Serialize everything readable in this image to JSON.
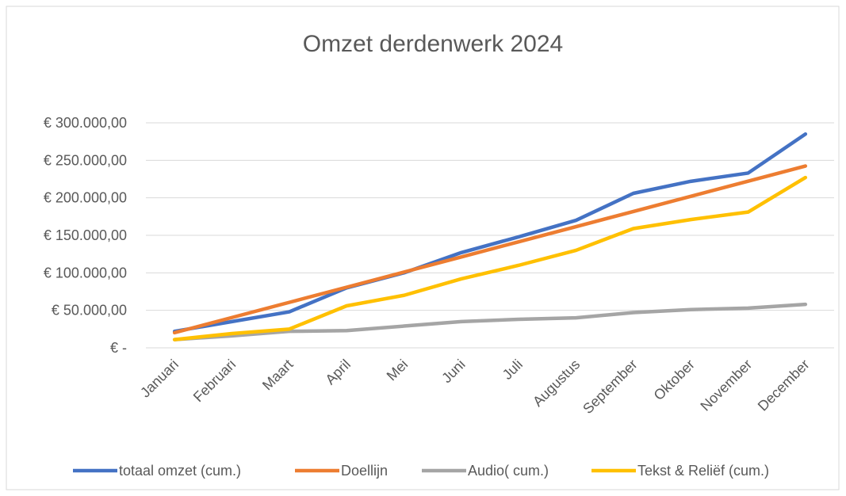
{
  "chart_data": {
    "type": "line",
    "title": "Omzet derdenwerk 2024",
    "categories": [
      "Januari",
      "Februari",
      "Maart",
      "April",
      "Mei",
      "Juni",
      "Juli",
      "Augustus",
      "September",
      "Oktober",
      "November",
      "December"
    ],
    "series": [
      {
        "name": "totaal omzet (cum.)",
        "color": "#4472c4",
        "values": [
          22000,
          35000,
          48000,
          80000,
          100000,
          127000,
          148000,
          170000,
          206000,
          222000,
          233000,
          285000
        ]
      },
      {
        "name": "Doellijn",
        "color": "#ed7d31",
        "values": [
          20200,
          40400,
          60600,
          80800,
          101000,
          121200,
          141400,
          161600,
          181800,
          202000,
          222200,
          242400
        ]
      },
      {
        "name": "Audio( cum.)",
        "color": "#a5a5a5",
        "values": [
          11000,
          16000,
          22000,
          23000,
          29000,
          35000,
          38000,
          40000,
          47000,
          51000,
          53000,
          58000
        ]
      },
      {
        "name": "Tekst & Reliëf (cum.)",
        "color": "#ffc000",
        "values": [
          11000,
          19000,
          25000,
          56000,
          70000,
          92000,
          110000,
          130000,
          159000,
          171000,
          181000,
          227000
        ]
      }
    ],
    "ylim": [
      0,
      300000
    ],
    "yticks": [
      {
        "value": 0,
        "label": "€ -"
      },
      {
        "value": 50000,
        "label": "€ 50.000,00"
      },
      {
        "value": 100000,
        "label": "€ 100.000,00"
      },
      {
        "value": 150000,
        "label": "€ 150.000,00"
      },
      {
        "value": 200000,
        "label": "€ 200.000,00"
      },
      {
        "value": 250000,
        "label": "€ 250.000,00"
      },
      {
        "value": 300000,
        "label": "€ 300.000,00"
      }
    ],
    "grid": true,
    "legend": "bottom"
  }
}
